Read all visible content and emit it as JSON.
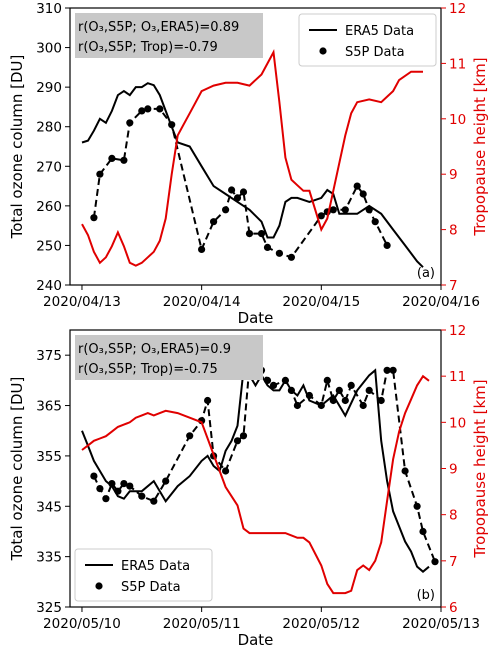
{
  "chart_data": [
    {
      "type": "line",
      "panel_label": "(a)",
      "xlabel": "Date",
      "ylabel_left": "Total ozone column [DU]",
      "ylabel_right": "Tropopause height [km]",
      "x_ticks": [
        "2020/04/13",
        "2020/04/14",
        "2020/04/15",
        "2020/04/16"
      ],
      "xlim": [
        -0.1,
        3.0
      ],
      "ylim_left": [
        240,
        310
      ],
      "yticks_left": [
        240,
        250,
        260,
        270,
        280,
        290,
        300,
        310
      ],
      "ylim_right": [
        7,
        12
      ],
      "yticks_right": [
        7,
        8,
        9,
        10,
        11,
        12
      ],
      "legend_position": "top-right",
      "annotation": {
        "line1": "r(O₃,S5P; O₃,ERA5)=0.89",
        "line2": "r(O₃,S5P; Trop)=-0.79"
      },
      "series": [
        {
          "name": "ERA5 Data",
          "axis": "left",
          "color": "#000000",
          "style": "solid",
          "x": [
            0.0,
            0.05,
            0.1,
            0.15,
            0.2,
            0.25,
            0.3,
            0.35,
            0.4,
            0.45,
            0.5,
            0.55,
            0.6,
            0.65,
            0.7,
            0.75,
            0.8,
            0.9,
            1.0,
            1.1,
            1.2,
            1.3,
            1.4,
            1.5,
            1.55,
            1.6,
            1.65,
            1.7,
            1.75,
            1.8,
            1.9,
            2.0,
            2.05,
            2.1,
            2.15,
            2.2,
            2.3,
            2.4,
            2.5,
            2.6,
            2.7,
            2.8,
            2.85
          ],
          "y": [
            276,
            276.5,
            279,
            282,
            281,
            284,
            288,
            289,
            288,
            290,
            290,
            291,
            290.5,
            288,
            284,
            280,
            276,
            275,
            270,
            265,
            263,
            261,
            259,
            256,
            252,
            252,
            255,
            261,
            262,
            262,
            261,
            262,
            264,
            263,
            258,
            258,
            258,
            260,
            258,
            254,
            250,
            246,
            244.5
          ]
        },
        {
          "name": "S5P Data",
          "axis": "left",
          "color": "#000000",
          "style": "dashed-markers",
          "x": [
            0.1,
            0.15,
            0.25,
            0.35,
            0.4,
            0.5,
            0.55,
            0.65,
            0.75,
            1.0,
            1.1,
            1.2,
            1.25,
            1.3,
            1.35,
            1.4,
            1.5,
            1.55,
            1.65,
            1.75,
            2.0,
            2.05,
            2.1,
            2.2,
            2.3,
            2.35,
            2.4,
            2.45,
            2.55
          ],
          "y": [
            257,
            268,
            272,
            271.5,
            281,
            284,
            284.5,
            284.5,
            280.5,
            249,
            256,
            259,
            264,
            262,
            263.5,
            253,
            253,
            249.5,
            248,
            247,
            257.5,
            258.5,
            259,
            259,
            265,
            263,
            259,
            256,
            250
          ]
        },
        {
          "name": "Tropopause height",
          "axis": "right",
          "color": "#e00000",
          "style": "solid",
          "x": [
            0.0,
            0.05,
            0.1,
            0.15,
            0.2,
            0.25,
            0.3,
            0.35,
            0.4,
            0.45,
            0.5,
            0.55,
            0.6,
            0.65,
            0.7,
            0.75,
            0.8,
            0.85,
            0.9,
            0.95,
            1.0,
            1.1,
            1.2,
            1.3,
            1.4,
            1.5,
            1.55,
            1.6,
            1.65,
            1.7,
            1.75,
            1.8,
            1.85,
            1.9,
            2.0,
            2.05,
            2.1,
            2.15,
            2.2,
            2.25,
            2.3,
            2.4,
            2.5,
            2.6,
            2.65,
            2.75,
            2.85
          ],
          "y": [
            8.1,
            7.9,
            7.6,
            7.4,
            7.5,
            7.7,
            7.95,
            7.7,
            7.4,
            7.35,
            7.4,
            7.5,
            7.6,
            7.8,
            8.2,
            9.0,
            9.7,
            9.9,
            10.1,
            10.3,
            10.5,
            10.6,
            10.65,
            10.65,
            10.6,
            10.8,
            11.0,
            11.2,
            10.3,
            9.3,
            8.9,
            8.8,
            8.7,
            8.7,
            8.0,
            8.2,
            8.7,
            9.2,
            9.7,
            10.1,
            10.3,
            10.35,
            10.3,
            10.5,
            10.7,
            10.85,
            10.85
          ]
        }
      ]
    },
    {
      "type": "line",
      "panel_label": "(b)",
      "xlabel": "Date",
      "ylabel_left": "Total ozone column [DU]",
      "ylabel_right": "Tropopause height [km]",
      "x_ticks": [
        "2020/05/10",
        "2020/05/11",
        "2020/05/12",
        "2020/05/13"
      ],
      "xlim": [
        -0.1,
        3.0
      ],
      "ylim_left": [
        325,
        380
      ],
      "yticks_left": [
        325,
        335,
        345,
        355,
        365,
        375
      ],
      "ylim_right": [
        6,
        12
      ],
      "yticks_right": [
        6,
        7,
        8,
        9,
        10,
        11,
        12
      ],
      "legend_position": "bottom-left",
      "annotation": {
        "line1": "r(O₃,S5P; O₃,ERA5)=0.9",
        "line2": "r(O₃,S5P; Trop)=-0.75"
      },
      "series": [
        {
          "name": "ERA5 Data",
          "axis": "left",
          "color": "#000000",
          "style": "solid",
          "x": [
            0.0,
            0.05,
            0.1,
            0.15,
            0.2,
            0.25,
            0.3,
            0.35,
            0.4,
            0.5,
            0.6,
            0.7,
            0.8,
            0.9,
            1.0,
            1.05,
            1.1,
            1.15,
            1.2,
            1.25,
            1.3,
            1.35,
            1.4,
            1.45,
            1.5,
            1.55,
            1.6,
            1.65,
            1.7,
            1.75,
            1.8,
            1.85,
            1.9,
            2.0,
            2.1,
            2.2,
            2.3,
            2.4,
            2.45,
            2.5,
            2.55,
            2.6,
            2.65,
            2.7,
            2.75,
            2.8,
            2.85,
            2.9
          ],
          "y": [
            360,
            357,
            354,
            352,
            350,
            349,
            347,
            346.5,
            348,
            348,
            350,
            346,
            349,
            351,
            354,
            355,
            353,
            352,
            356,
            358,
            361,
            372,
            371,
            369,
            371,
            369,
            368,
            368,
            370,
            368,
            367,
            369,
            366,
            365,
            367,
            363,
            368,
            371,
            372,
            358,
            350,
            344,
            341,
            338,
            336,
            333,
            332,
            333
          ]
        },
        {
          "name": "S5P Data",
          "axis": "left",
          "color": "#000000",
          "style": "dashed-markers",
          "x": [
            0.1,
            0.15,
            0.2,
            0.25,
            0.3,
            0.35,
            0.4,
            0.5,
            0.6,
            0.7,
            0.9,
            1.0,
            1.05,
            1.1,
            1.2,
            1.3,
            1.35,
            1.4,
            1.5,
            1.55,
            1.6,
            1.7,
            1.75,
            1.8,
            1.9,
            2.0,
            2.05,
            2.1,
            2.15,
            2.2,
            2.25,
            2.35,
            2.4,
            2.5,
            2.55,
            2.6,
            2.7,
            2.8,
            2.85,
            2.95
          ],
          "y": [
            351,
            348.5,
            346.5,
            349.5,
            348,
            349.5,
            349,
            347,
            346,
            350,
            359,
            362,
            366,
            355,
            352,
            358,
            359,
            373,
            372,
            370,
            369,
            370,
            368,
            365,
            367,
            365,
            370,
            366,
            368,
            366,
            369,
            365,
            368,
            366,
            372,
            372,
            352,
            345,
            340,
            334
          ]
        },
        {
          "name": "Tropopause height",
          "axis": "right",
          "color": "#e00000",
          "style": "solid",
          "x": [
            0.0,
            0.05,
            0.1,
            0.15,
            0.2,
            0.25,
            0.3,
            0.35,
            0.4,
            0.45,
            0.5,
            0.55,
            0.6,
            0.65,
            0.7,
            0.8,
            0.9,
            1.0,
            1.1,
            1.2,
            1.3,
            1.35,
            1.4,
            1.45,
            1.5,
            1.55,
            1.6,
            1.65,
            1.7,
            1.75,
            1.8,
            1.85,
            1.9,
            2.0,
            2.05,
            2.1,
            2.15,
            2.2,
            2.25,
            2.3,
            2.35,
            2.4,
            2.45,
            2.5,
            2.55,
            2.6,
            2.65,
            2.7,
            2.75,
            2.8,
            2.85,
            2.9
          ],
          "y": [
            9.4,
            9.5,
            9.6,
            9.65,
            9.7,
            9.8,
            9.9,
            9.95,
            10.0,
            10.1,
            10.15,
            10.2,
            10.15,
            10.2,
            10.25,
            10.2,
            10.1,
            10.0,
            9.3,
            8.6,
            8.2,
            7.7,
            7.6,
            7.6,
            7.6,
            7.6,
            7.6,
            7.6,
            7.6,
            7.55,
            7.5,
            7.5,
            7.4,
            6.9,
            6.5,
            6.3,
            6.3,
            6.3,
            6.35,
            6.8,
            6.9,
            6.8,
            7.0,
            7.4,
            8.3,
            9.2,
            9.8,
            10.2,
            10.5,
            10.8,
            11.0,
            10.9
          ]
        }
      ]
    }
  ]
}
